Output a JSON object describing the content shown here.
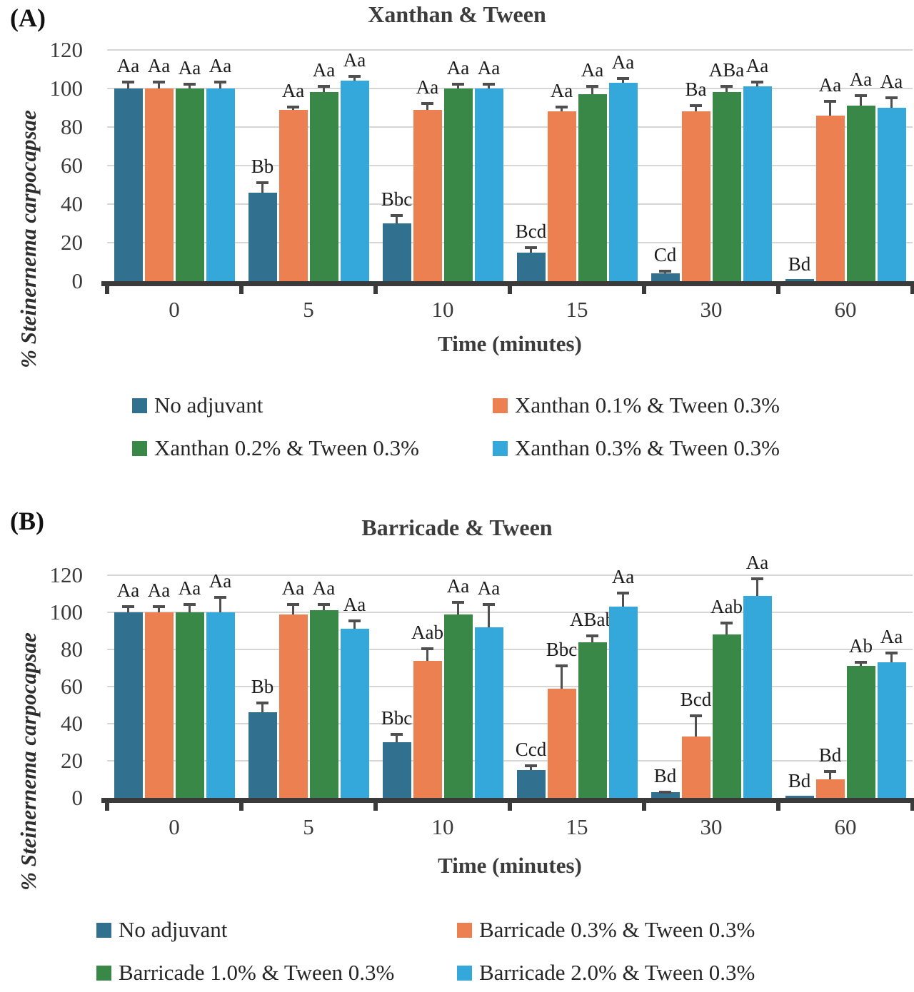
{
  "chart_data": [
    {
      "type": "bar",
      "panel_label": "(A)",
      "title": "Xanthan & Tween",
      "ylabel": "% Steinernema carpocapsae",
      "xlabel": "Time (minutes)",
      "ylim": [
        0,
        120
      ],
      "y_ticks": [
        120,
        100,
        80,
        60,
        40,
        20,
        0
      ],
      "grid": true,
      "legend_position": "bottom",
      "categories": [
        "0",
        "5",
        "10",
        "15",
        "30",
        "60"
      ],
      "series": [
        {
          "name": "No adjuvant",
          "color": "#31708F",
          "values": [
            100,
            46,
            30,
            15,
            4,
            1
          ],
          "errors": [
            4,
            6,
            5,
            3,
            2,
            0
          ],
          "sig_labels": [
            "Aa",
            "Bb",
            "Bbc",
            "Bcd",
            "Cd",
            "Bd"
          ]
        },
        {
          "name": "Xanthan 0.1% & Tween 0.3%",
          "color": "#EC8050",
          "values": [
            100,
            89,
            89,
            88,
            88,
            86
          ],
          "errors": [
            4,
            2,
            4,
            3,
            4,
            8
          ],
          "sig_labels": [
            "Aa",
            "Aa",
            "Aa",
            "Aa",
            "Ba",
            "Aa"
          ]
        },
        {
          "name": "Xanthan 0.2% & Tween 0.3%",
          "color": "#3A8847",
          "values": [
            100,
            98,
            100,
            97,
            98,
            91
          ],
          "errors": [
            3,
            4,
            3,
            5,
            4,
            6
          ],
          "sig_labels": [
            "Aa",
            "Aa",
            "Aa",
            "Aa",
            "ABa",
            "Aa"
          ]
        },
        {
          "name": "Xanthan 0.3% & Tween 0.3%",
          "color": "#35A8DB",
          "values": [
            100,
            104,
            100,
            103,
            101,
            90
          ],
          "errors": [
            4,
            3,
            3,
            3,
            3,
            6
          ],
          "sig_labels": [
            "Aa",
            "Aa",
            "Aa",
            "Aa",
            "Aa",
            "Aa"
          ]
        }
      ]
    },
    {
      "type": "bar",
      "panel_label": "(B)",
      "title": "Barricade & Tween",
      "ylabel": "% Steinernema carpocapsae",
      "xlabel": "Time (minutes)",
      "ylim": [
        0,
        120
      ],
      "y_ticks": [
        120,
        100,
        80,
        60,
        40,
        20,
        0
      ],
      "grid": true,
      "legend_position": "bottom",
      "categories": [
        "0",
        "5",
        "10",
        "15",
        "30",
        "60"
      ],
      "series": [
        {
          "name": "No adjuvant",
          "color": "#31708F",
          "values": [
            100,
            46,
            30,
            15,
            3,
            1
          ],
          "errors": [
            4,
            6,
            5,
            3,
            1,
            0
          ],
          "sig_labels": [
            "Aa",
            "Bb",
            "Bbc",
            "Ccd",
            "Bd",
            "Bd"
          ]
        },
        {
          "name": "Barricade 0.3% & Tween 0.3%",
          "color": "#EC8050",
          "values": [
            100,
            99,
            74,
            59,
            33,
            10
          ],
          "errors": [
            4,
            6,
            7,
            13,
            12,
            5
          ],
          "sig_labels": [
            "Aa",
            "Aa",
            "Aab",
            "Bbc",
            "Bcd",
            "Bd"
          ]
        },
        {
          "name": "Barricade 1.0% & Tween 0.3%",
          "color": "#3A8847",
          "values": [
            100,
            101,
            99,
            84,
            88,
            71
          ],
          "errors": [
            5,
            4,
            7,
            4,
            7,
            3
          ],
          "sig_labels": [
            "Aa",
            "Aa",
            "Aa",
            "ABab",
            "Aab",
            "Ab"
          ]
        },
        {
          "name": "Barricade 2.0% & Tween 0.3%",
          "color": "#35A8DB",
          "values": [
            100,
            91,
            92,
            103,
            109,
            73
          ],
          "errors": [
            9,
            5,
            13,
            8,
            10,
            6
          ],
          "sig_labels": [
            "Aa",
            "Aa",
            "Aa",
            "Aa",
            "Aa",
            "Aa"
          ]
        }
      ]
    }
  ]
}
